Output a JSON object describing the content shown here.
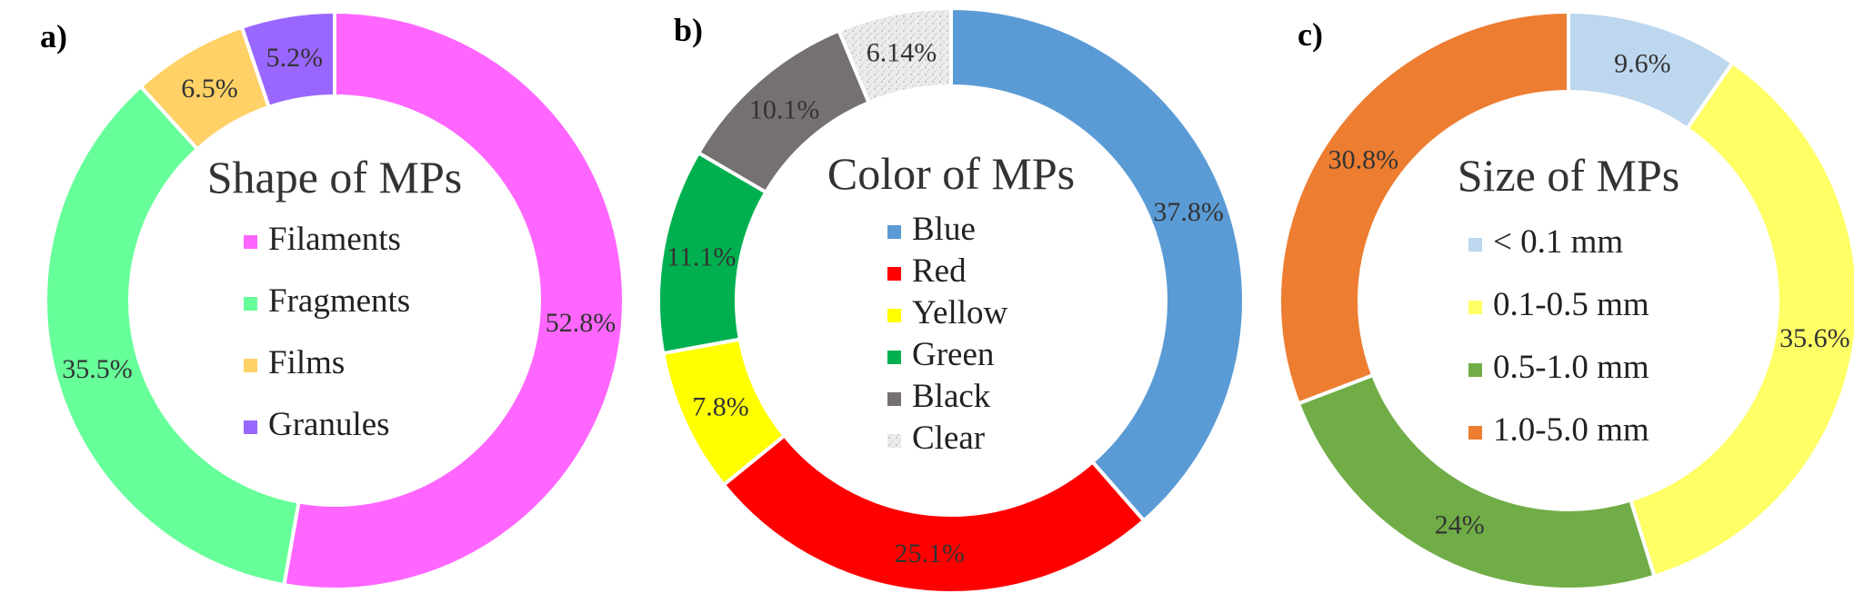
{
  "panels": [
    {
      "label": "a)"
    },
    {
      "label": "b)"
    },
    {
      "label": "c)"
    }
  ],
  "chart_data": [
    {
      "type": "pie",
      "donut": true,
      "title": "Shape of MPs",
      "categories": [
        "Filaments",
        "Fragments",
        "Films",
        "Granules"
      ],
      "values": [
        52.8,
        35.5,
        6.5,
        5.2
      ],
      "data_labels": [
        "52.8%",
        "35.5%",
        "6.5%",
        "5.2%"
      ],
      "colors": [
        "#ff66ff",
        "#66ff99",
        "#ffd166",
        "#9966ff"
      ],
      "legend": "center"
    },
    {
      "type": "pie",
      "donut": true,
      "title": "Color of MPs",
      "categories": [
        "Blue",
        "Red",
        "Yellow",
        "Green",
        "Black",
        "Clear"
      ],
      "values": [
        37.8,
        25.1,
        7.8,
        11.1,
        10.1,
        6.14
      ],
      "data_labels": [
        "37.8%",
        "25.1%",
        "7.8%",
        "11.1%",
        "10.1%",
        "6.14%"
      ],
      "colors": [
        "#5b9bd5",
        "#ff0000",
        "#ffff00",
        "#00b050",
        "#767171",
        "#e8e8e8"
      ],
      "legend": "center"
    },
    {
      "type": "pie",
      "donut": true,
      "title": "Size of MPs",
      "categories": [
        "< 0.1 mm",
        "0.1-0.5 mm",
        "0.5-1.0 mm",
        "1.0-5.0 mm"
      ],
      "values": [
        9.6,
        35.6,
        24,
        30.8
      ],
      "data_labels": [
        "9.6%",
        "35.6%",
        "24%",
        "30.8%"
      ],
      "colors": [
        "#bdd7ee",
        "#ffff66",
        "#70ad47",
        "#ed7d31"
      ],
      "legend": "center"
    }
  ]
}
